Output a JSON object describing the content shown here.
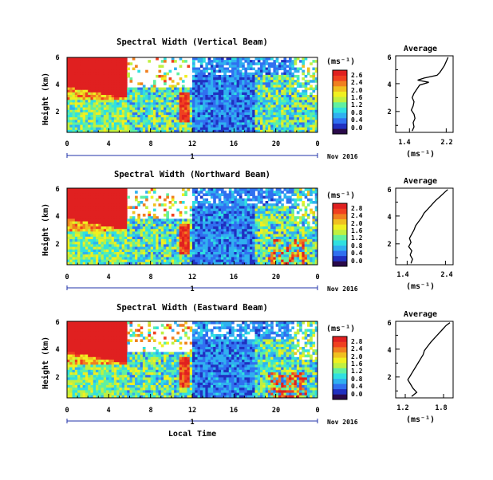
{
  "chart_data": [
    {
      "type": "heatmap",
      "title": "Spectral Width (Vertical Beam)",
      "ylabel": "Height (km)",
      "x_ticks": [
        "0",
        "4",
        "8",
        "12",
        "16",
        "20",
        "0"
      ],
      "y_ticks": [
        "6",
        "4",
        "2"
      ],
      "xlim": [
        0,
        24
      ],
      "ylim": [
        0.5,
        6
      ],
      "day_label": "1",
      "date_label": "Nov 2016",
      "colorbar": {
        "unit": "(ms⁻¹)",
        "tick_labels": [
          "2.6",
          "2.4",
          "2.0",
          "1.6",
          "1.2",
          "0.8",
          "0.4",
          "0.0"
        ],
        "colors": [
          "#2a0a4a",
          "#2030c0",
          "#3070f0",
          "#30b0f0",
          "#30e0e0",
          "#60f0a0",
          "#c0f040",
          "#f0f020",
          "#f0c020",
          "#f08020",
          "#f04020",
          "#e02020"
        ]
      },
      "average_panel": {
        "title": "Average",
        "xlabel": "(ms⁻¹)",
        "x_ticks": [
          "1.4",
          "2.2"
        ],
        "y_ticks": [
          "6",
          "4",
          "2"
        ],
        "xlim": [
          1.1,
          2.35
        ],
        "profile": [
          [
            0.6,
            1.46
          ],
          [
            0.9,
            1.5
          ],
          [
            1.2,
            1.48
          ],
          [
            1.5,
            1.52
          ],
          [
            1.8,
            1.5
          ],
          [
            2.1,
            1.44
          ],
          [
            2.4,
            1.48
          ],
          [
            2.7,
            1.5
          ],
          [
            3.0,
            1.46
          ],
          [
            3.3,
            1.5
          ],
          [
            3.6,
            1.56
          ],
          [
            3.9,
            1.62
          ],
          [
            4.1,
            1.82
          ],
          [
            4.25,
            1.58
          ],
          [
            4.4,
            1.72
          ],
          [
            4.6,
            2.0
          ],
          [
            4.8,
            2.06
          ],
          [
            5.0,
            2.1
          ],
          [
            5.3,
            2.16
          ],
          [
            5.6,
            2.2
          ],
          [
            5.9,
            2.24
          ]
        ]
      }
    },
    {
      "type": "heatmap",
      "title": "Spectral Width (Northward Beam)",
      "ylabel": "Height (km)",
      "x_ticks": [
        "0",
        "4",
        "8",
        "12",
        "16",
        "20",
        "0"
      ],
      "y_ticks": [
        "6",
        "4",
        "2"
      ],
      "xlim": [
        0,
        24
      ],
      "ylim": [
        0.5,
        6
      ],
      "day_label": "1",
      "date_label": "Nov 2016",
      "colorbar": {
        "unit": "(ms⁻¹)",
        "tick_labels": [
          "2.8",
          "2.4",
          "2.0",
          "1.6",
          "1.2",
          "0.8",
          "0.4",
          "0.0"
        ],
        "colors": [
          "#2a0a4a",
          "#2030c0",
          "#3070f0",
          "#30b0f0",
          "#30e0e0",
          "#60f0a0",
          "#c0f040",
          "#f0f020",
          "#f0c020",
          "#f08020",
          "#f04020",
          "#e02020"
        ]
      },
      "average_panel": {
        "title": "Average",
        "xlabel": "(ms⁻¹)",
        "x_ticks": [
          "1.4",
          "2.4"
        ],
        "y_ticks": [
          "6",
          "4",
          "2"
        ],
        "xlim": [
          1.1,
          2.6
        ],
        "profile": [
          [
            0.6,
            1.5
          ],
          [
            0.9,
            1.54
          ],
          [
            1.2,
            1.48
          ],
          [
            1.5,
            1.52
          ],
          [
            1.8,
            1.44
          ],
          [
            2.1,
            1.5
          ],
          [
            2.4,
            1.46
          ],
          [
            2.7,
            1.52
          ],
          [
            3.0,
            1.58
          ],
          [
            3.3,
            1.62
          ],
          [
            3.6,
            1.7
          ],
          [
            3.9,
            1.78
          ],
          [
            4.2,
            1.84
          ],
          [
            4.5,
            1.94
          ],
          [
            4.8,
            2.04
          ],
          [
            5.1,
            2.14
          ],
          [
            5.4,
            2.26
          ],
          [
            5.7,
            2.38
          ],
          [
            5.9,
            2.46
          ]
        ]
      }
    },
    {
      "type": "heatmap",
      "title": "Spectral Width (Eastward Beam)",
      "ylabel": "Height (km)",
      "x_ticks": [
        "0",
        "4",
        "8",
        "12",
        "16",
        "20",
        "0"
      ],
      "y_ticks": [
        "6",
        "4",
        "2"
      ],
      "xlim": [
        0,
        24
      ],
      "ylim": [
        0.5,
        6
      ],
      "day_label": "1",
      "date_label": "Nov 2016",
      "xlabel": "Local Time",
      "colorbar": {
        "unit": "(ms⁻¹)",
        "tick_labels": [
          "2.8",
          "2.4",
          "2.0",
          "1.6",
          "1.2",
          "0.8",
          "0.4",
          "0.0"
        ],
        "colors": [
          "#2a0a4a",
          "#2030c0",
          "#3070f0",
          "#30b0f0",
          "#30e0e0",
          "#60f0a0",
          "#c0f040",
          "#f0f020",
          "#f0c020",
          "#f08020",
          "#f04020",
          "#e02020"
        ]
      },
      "average_panel": {
        "title": "Average",
        "xlabel": "(ms⁻¹)",
        "x_ticks": [
          "1.2",
          "1.8"
        ],
        "y_ticks": [
          "6",
          "4",
          "2"
        ],
        "xlim": [
          1.05,
          1.95
        ],
        "profile": [
          [
            0.6,
            1.3
          ],
          [
            0.9,
            1.38
          ],
          [
            1.2,
            1.32
          ],
          [
            1.5,
            1.28
          ],
          [
            1.8,
            1.24
          ],
          [
            2.1,
            1.28
          ],
          [
            2.4,
            1.32
          ],
          [
            2.7,
            1.36
          ],
          [
            3.0,
            1.4
          ],
          [
            3.3,
            1.44
          ],
          [
            3.6,
            1.48
          ],
          [
            3.9,
            1.5
          ],
          [
            4.2,
            1.55
          ],
          [
            4.5,
            1.6
          ],
          [
            4.8,
            1.66
          ],
          [
            5.1,
            1.72
          ],
          [
            5.4,
            1.78
          ],
          [
            5.7,
            1.84
          ],
          [
            5.9,
            1.9
          ]
        ]
      }
    }
  ]
}
